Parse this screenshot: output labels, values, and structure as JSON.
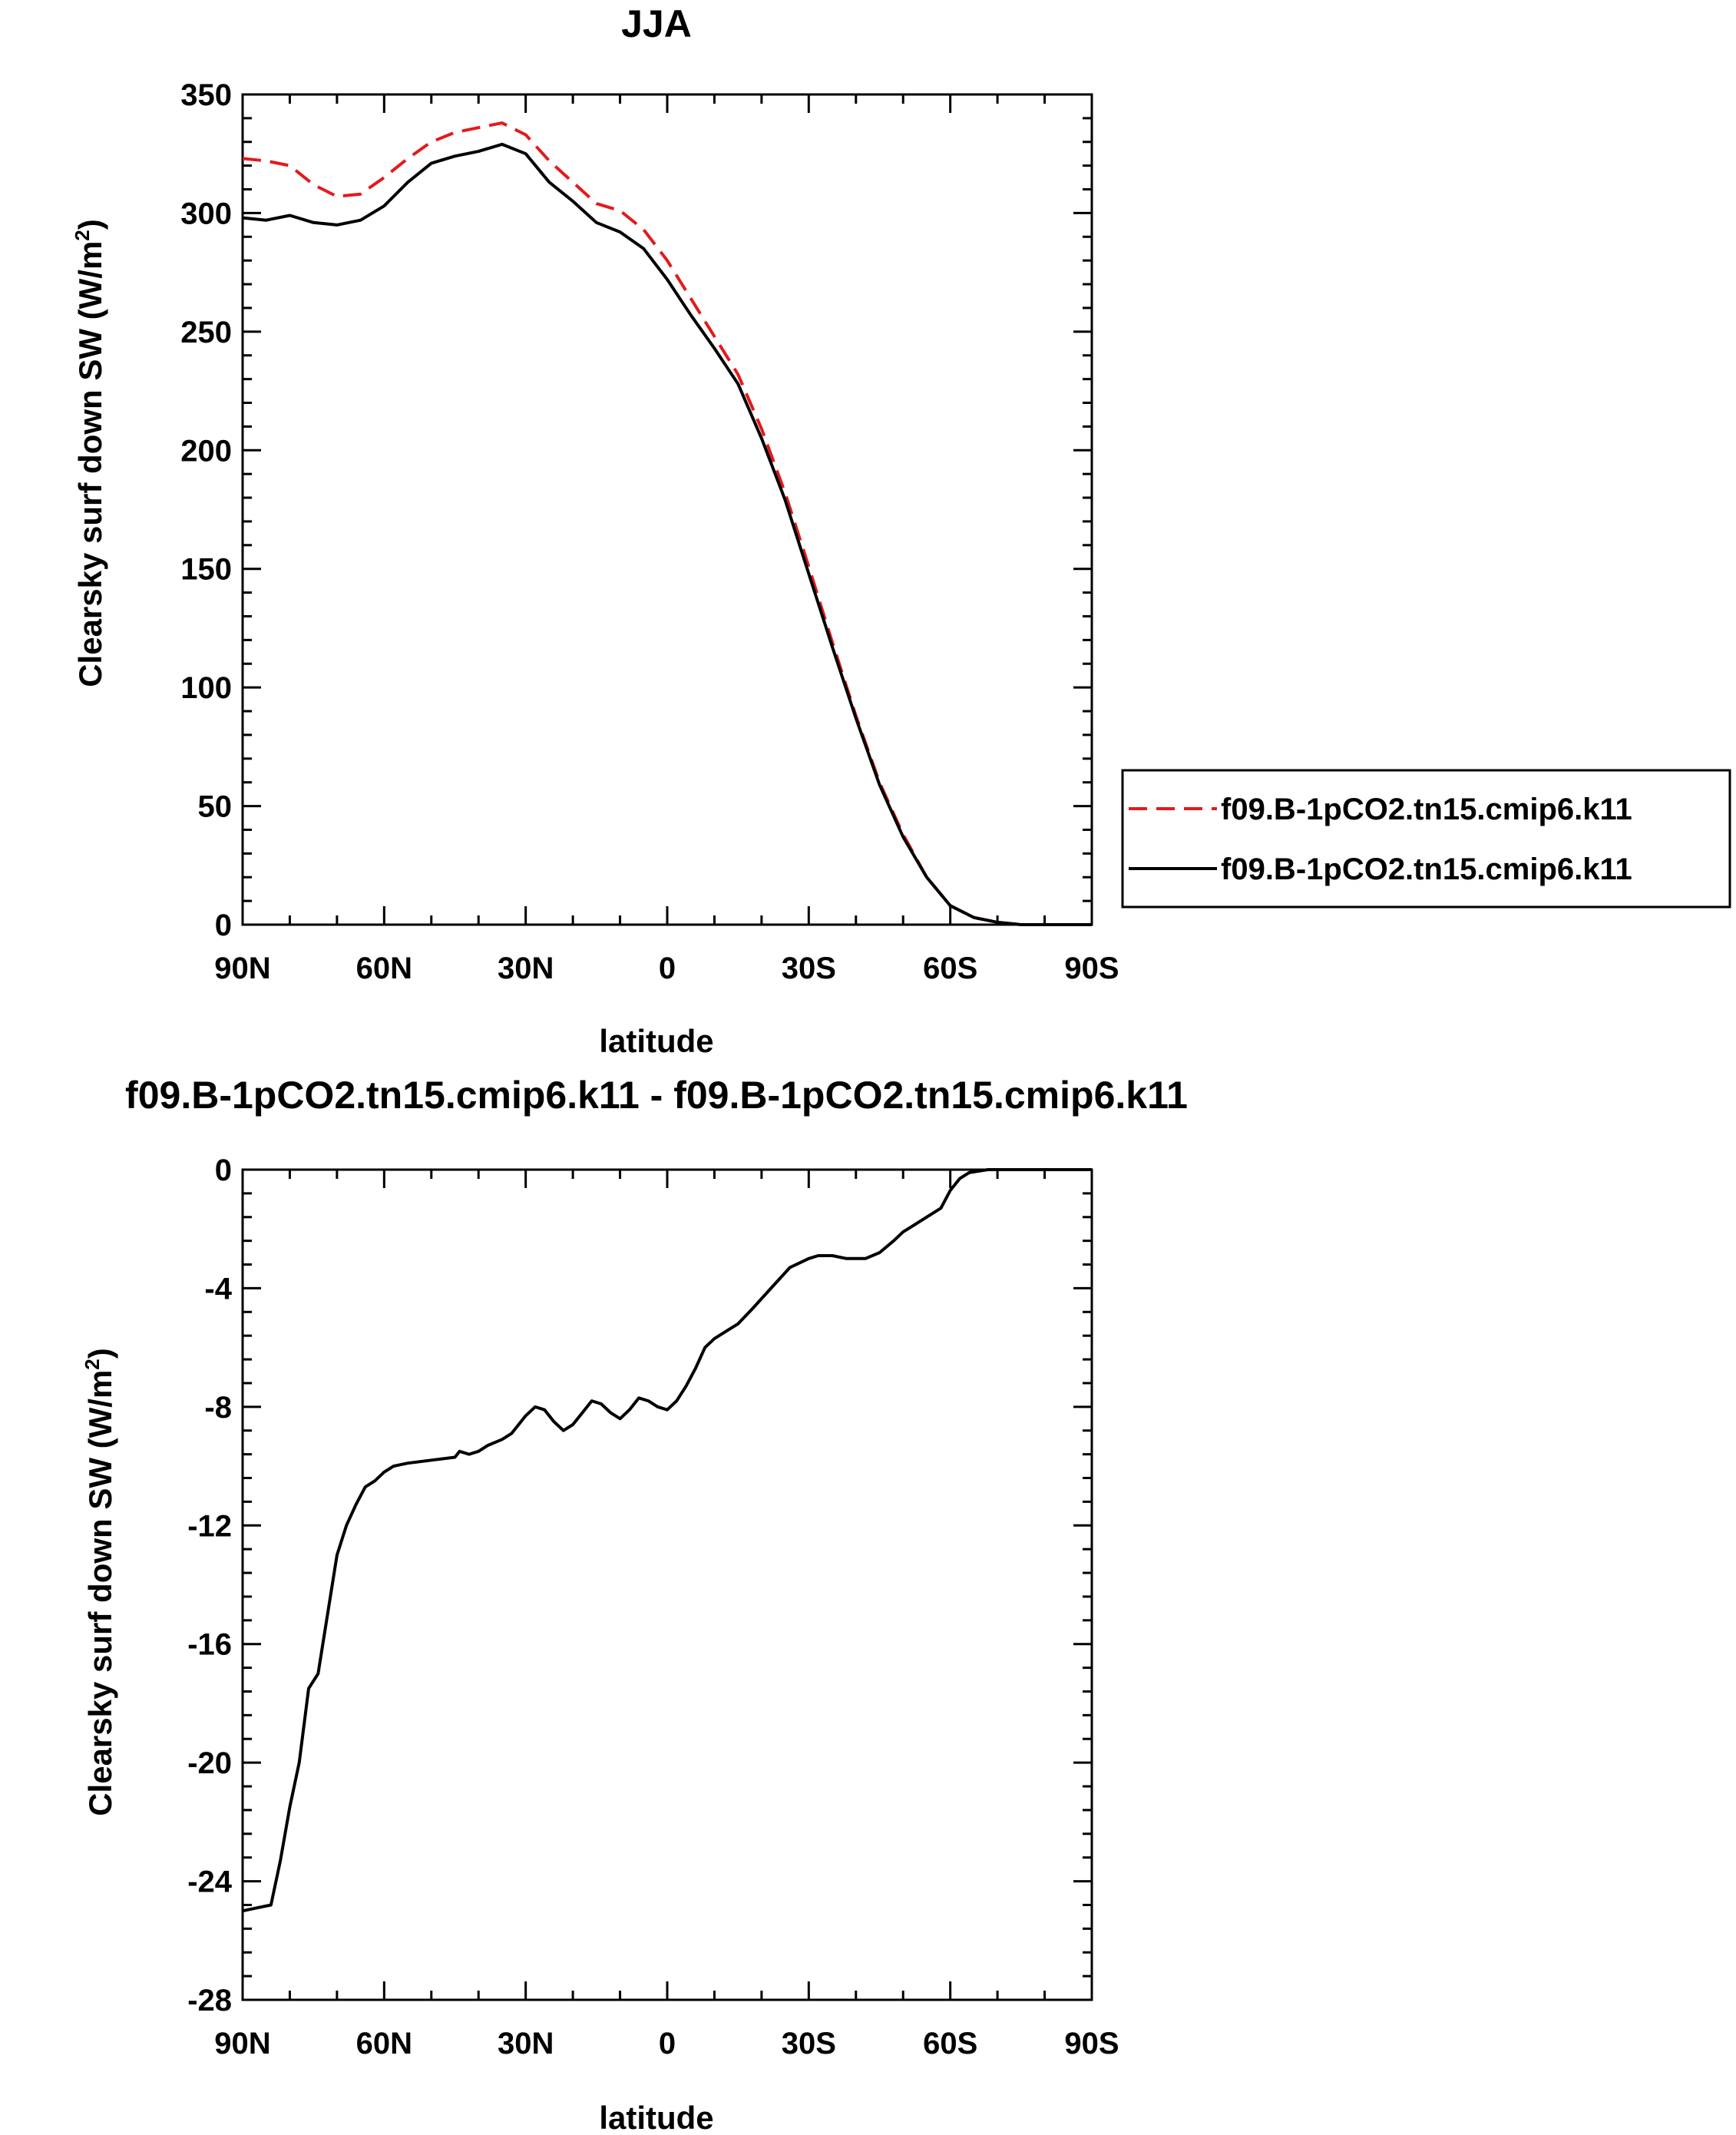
{
  "chart_data": [
    {
      "type": "line",
      "title": "JJA",
      "xlabel": "latitude",
      "ylabel_main": "Clearsky surf down SW (W/m",
      "ylabel_sup": "2",
      "ylabel_close": ")",
      "xlim": [
        90,
        -90
      ],
      "ylim": [
        0,
        350
      ],
      "x_ticks": [
        {
          "value": 90,
          "label": "90N"
        },
        {
          "value": 60,
          "label": "60N"
        },
        {
          "value": 30,
          "label": "30N"
        },
        {
          "value": 0,
          "label": "0"
        },
        {
          "value": -30,
          "label": "30S"
        },
        {
          "value": -60,
          "label": "60S"
        },
        {
          "value": -90,
          "label": "90S"
        }
      ],
      "y_ticks": [
        0,
        50,
        100,
        150,
        200,
        250,
        300,
        350
      ],
      "grid": false,
      "legend_position": "right",
      "series": [
        {
          "name": "f09.B-1pCO2.tn15.cmip6.k11",
          "color": "#e31a1c",
          "dash": "dashed",
          "x": [
            90,
            85,
            80,
            75,
            70,
            65,
            60,
            55,
            50,
            45,
            40,
            35,
            30,
            25,
            20,
            15,
            10,
            5,
            0,
            -5,
            -10,
            -15,
            -20,
            -25,
            -30,
            -35,
            -40,
            -45,
            -50,
            -55,
            -60,
            -65,
            -70,
            -75,
            -80,
            -85,
            -90
          ],
          "y": [
            323,
            322,
            320,
            312,
            307,
            308,
            315,
            323,
            330,
            334,
            336,
            338,
            333,
            322,
            313,
            304,
            301,
            293,
            280,
            264,
            248,
            232,
            209,
            182,
            151,
            119,
            88,
            60,
            38,
            20,
            8,
            3,
            1,
            0,
            0,
            0,
            0
          ]
        },
        {
          "name": "f09.B-1pCO2.tn15.cmip6.k11",
          "color": "#000000",
          "dash": "solid",
          "x": [
            90,
            85,
            80,
            75,
            70,
            65,
            60,
            55,
            50,
            45,
            40,
            35,
            30,
            25,
            20,
            15,
            10,
            5,
            0,
            -5,
            -10,
            -15,
            -20,
            -25,
            -30,
            -35,
            -40,
            -45,
            -50,
            -55,
            -60,
            -65,
            -70,
            -75,
            -80,
            -85,
            -90
          ],
          "y": [
            298,
            297,
            299,
            296,
            295,
            297,
            303,
            313,
            321,
            324,
            326,
            329,
            325,
            313,
            305,
            296,
            292,
            285,
            272,
            257,
            243,
            228,
            205,
            179,
            148,
            117,
            87,
            59,
            37,
            20,
            8,
            3,
            1,
            0,
            0,
            0,
            0
          ]
        }
      ]
    },
    {
      "type": "line",
      "title": "f09.B-1pCO2.tn15.cmip6.k11 - f09.B-1pCO2.tn15.cmip6.k11",
      "xlabel": "latitude",
      "ylabel_main": "Clearsky surf down SW (W/m",
      "ylabel_sup": "2",
      "ylabel_close": ")",
      "xlim": [
        90,
        -90
      ],
      "ylim": [
        -28,
        0
      ],
      "x_ticks": [
        {
          "value": 90,
          "label": "90N"
        },
        {
          "value": 60,
          "label": "60N"
        },
        {
          "value": 30,
          "label": "30N"
        },
        {
          "value": 0,
          "label": "0"
        },
        {
          "value": -30,
          "label": "30S"
        },
        {
          "value": -60,
          "label": "60S"
        },
        {
          "value": -90,
          "label": "90S"
        }
      ],
      "y_ticks": [
        0,
        -4,
        -8,
        -12,
        -16,
        -20,
        -24,
        -28
      ],
      "grid": false,
      "series": [
        {
          "color": "#000000",
          "dash": "solid",
          "x": [
            90,
            87,
            84,
            82,
            80,
            78,
            76,
            74,
            72,
            70,
            68,
            66,
            64,
            62,
            60,
            58,
            55,
            50,
            45,
            44,
            42,
            40,
            38,
            35,
            33,
            30,
            28,
            26,
            24,
            22,
            20,
            18,
            16,
            14,
            12,
            10,
            8,
            6,
            4,
            2,
            0,
            -2,
            -4,
            -6,
            -8,
            -10,
            -12,
            -15,
            -18,
            -22,
            -26,
            -30,
            -32,
            -35,
            -38,
            -42,
            -45,
            -48,
            -50,
            -52,
            -55,
            -58,
            -60,
            -62,
            -64,
            -66,
            -68,
            -70,
            -75,
            -80,
            -85,
            -90
          ],
          "y": [
            -25.0,
            -24.9,
            -24.8,
            -23.3,
            -21.5,
            -20.0,
            -17.5,
            -17.0,
            -15.0,
            -13.0,
            -12.0,
            -11.3,
            -10.7,
            -10.5,
            -10.2,
            -10.0,
            -9.9,
            -9.8,
            -9.7,
            -9.5,
            -9.6,
            -9.5,
            -9.3,
            -9.1,
            -8.9,
            -8.3,
            -8.0,
            -8.1,
            -8.5,
            -8.8,
            -8.6,
            -8.2,
            -7.8,
            -7.9,
            -8.2,
            -8.4,
            -8.1,
            -7.7,
            -7.8,
            -8.0,
            -8.1,
            -7.8,
            -7.3,
            -6.7,
            -6.0,
            -5.7,
            -5.5,
            -5.2,
            -4.7,
            -4.0,
            -3.3,
            -3.0,
            -2.9,
            -2.9,
            -3.0,
            -3.0,
            -2.8,
            -2.4,
            -2.1,
            -1.9,
            -1.6,
            -1.3,
            -0.7,
            -0.3,
            -0.1,
            -0.05,
            0,
            0,
            0,
            0,
            0,
            0
          ]
        }
      ]
    }
  ]
}
